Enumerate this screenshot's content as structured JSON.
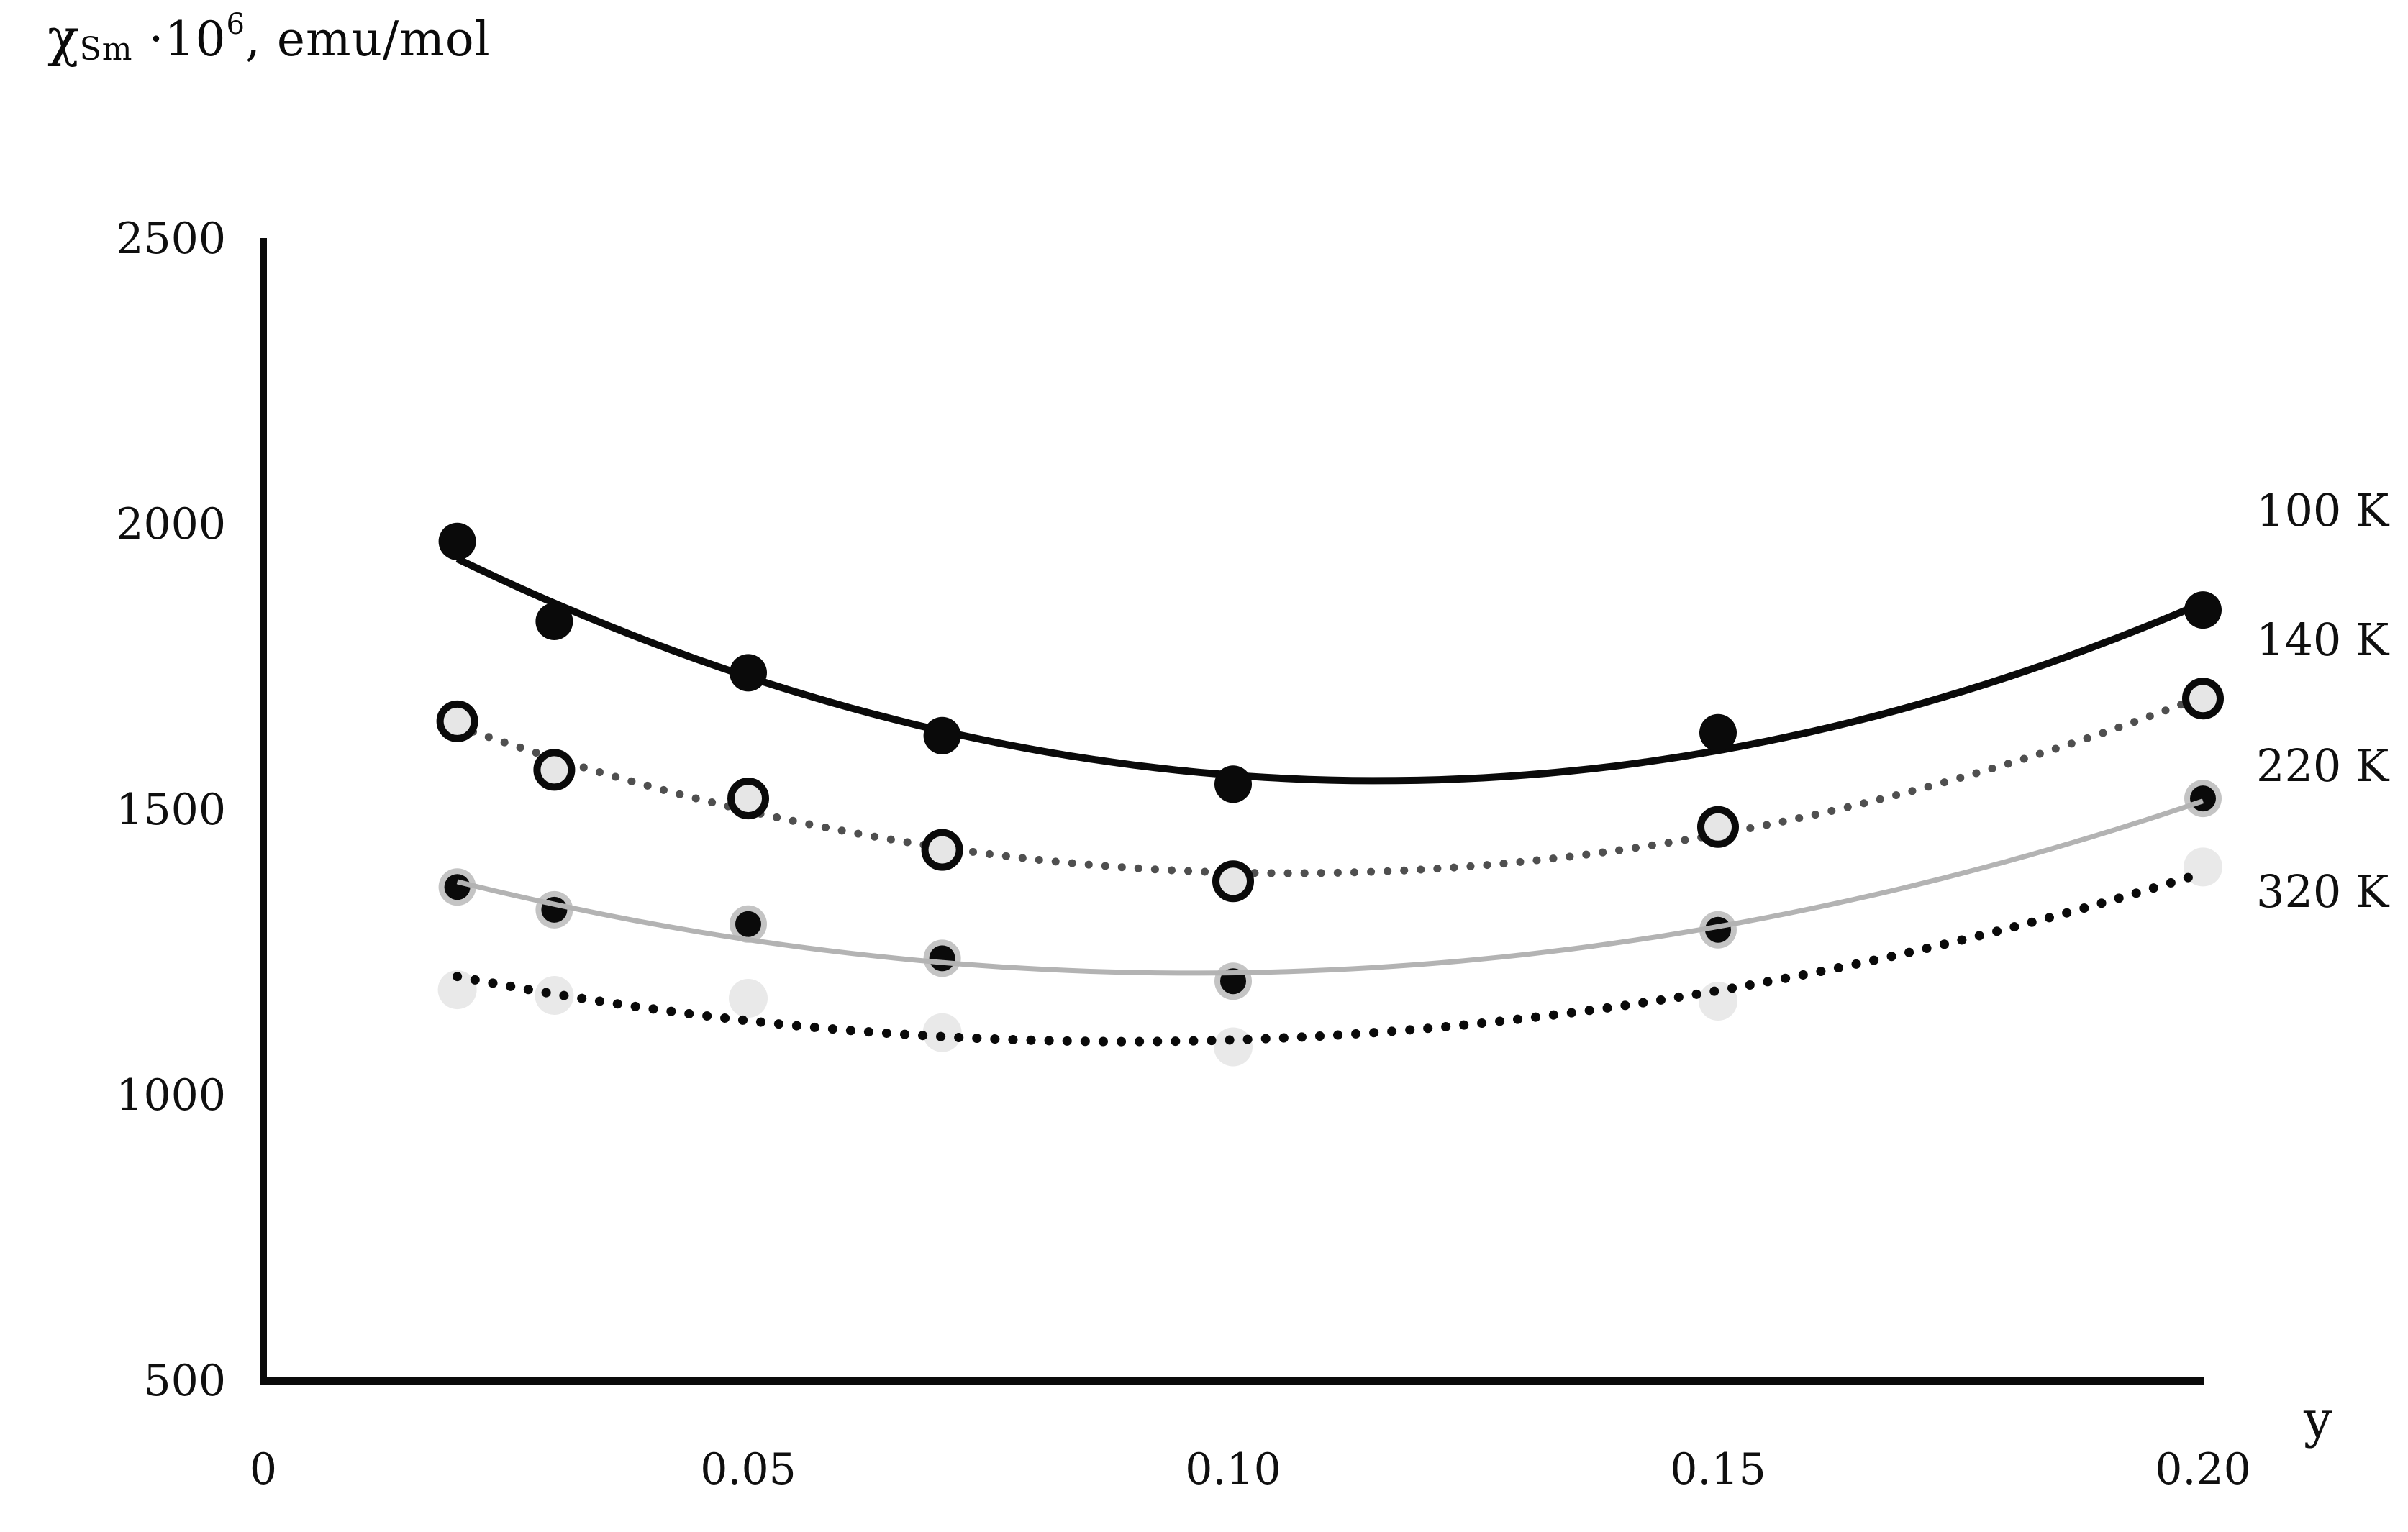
{
  "chart_data": {
    "type": "scatter",
    "title": "χSm·10⁶, emu/mol",
    "title_parts": {
      "chi": "χ",
      "sub": "Sm",
      "mid": " ·10",
      "sup": "6",
      "rest": ", emu/mol"
    },
    "xlabel": "y",
    "ylabel": "χSm·10⁶, emu/mol",
    "x": [
      0.02,
      0.03,
      0.05,
      0.07,
      0.1,
      0.15,
      0.2
    ],
    "series": [
      {
        "name": "100 K",
        "marker": "filled-black-circle",
        "line": "solid-black",
        "trendline": "quadratic",
        "values": [
          1970,
          1830,
          1740,
          1630,
          1545,
          1635,
          1850
        ]
      },
      {
        "name": "140 K",
        "marker": "open-circle",
        "line": "dotted-gray",
        "trendline": "quadratic",
        "values": [
          1655,
          1570,
          1520,
          1430,
          1375,
          1470,
          1695
        ]
      },
      {
        "name": "220 K",
        "marker": "black-circle-gray-halo",
        "line": "solid-gray",
        "trendline": "quadratic",
        "values": [
          1365,
          1325,
          1300,
          1240,
          1200,
          1290,
          1520
        ]
      },
      {
        "name": "320 K",
        "marker": "light-gray-circle",
        "line": "dotted-black",
        "trendline": "quadratic",
        "values": [
          1185,
          1175,
          1170,
          1110,
          1085,
          1165,
          1400
        ]
      }
    ],
    "x_tick_labels": [
      "0",
      "0.05",
      "0.10",
      "0.15",
      "0.20"
    ],
    "x_tick_values": [
      0,
      0.05,
      0.1,
      0.15,
      0.2
    ],
    "y_tick_labels": [
      "2500",
      "2000",
      "1500",
      "1000",
      "500"
    ],
    "y_tick_values": [
      2500,
      2000,
      1500,
      1000,
      500
    ],
    "xlim": [
      0,
      0.2
    ],
    "ylim": [
      500,
      2500
    ],
    "grid": false,
    "legend": {
      "position": "right-outside",
      "labels": [
        "100 K",
        "140 K",
        "220 K",
        "320 K"
      ]
    },
    "colors": {
      "black": "#0a0a0a",
      "dotted_dark_gray": "#4f4f4f",
      "solid_light_gray": "#b3b3b3",
      "halo_gray": "#c4c4c4",
      "open_marker_fill": "#e6e6e6",
      "light_marker_fill": "#e9e9e9",
      "background": "#ffffff"
    }
  }
}
